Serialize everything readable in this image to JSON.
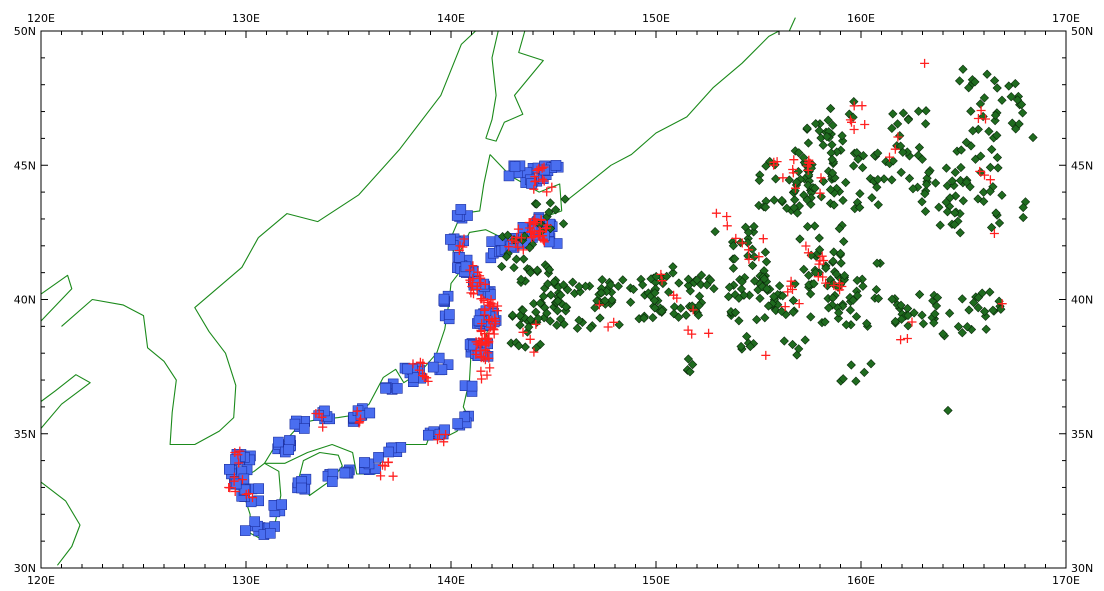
{
  "map": {
    "projection": "equirectangular",
    "extent": {
      "lon_min": 120,
      "lon_max": 170,
      "lat_min": 30,
      "lat_max": 50
    },
    "lon_ticks": [
      {
        "value": 120,
        "label": "120E"
      },
      {
        "value": 130,
        "label": "130E"
      },
      {
        "value": 140,
        "label": "140E"
      },
      {
        "value": 150,
        "label": "150E"
      },
      {
        "value": 160,
        "label": "160E"
      },
      {
        "value": 170,
        "label": "170E"
      }
    ],
    "lat_ticks": [
      {
        "value": 30,
        "label": "30N"
      },
      {
        "value": 35,
        "label": "35N"
      },
      {
        "value": 40,
        "label": "40N"
      },
      {
        "value": 45,
        "label": "45N"
      },
      {
        "value": 50,
        "label": "50N"
      }
    ],
    "colors": {
      "coastline": "#1b8a1b",
      "coastal_square": "#4a6ef0",
      "coastal_square_border": "#1c2fa0",
      "ocean_diamond": "#1f6b1f",
      "ocean_diamond_border": "#0a2a0a",
      "red_plus": "#ff2020"
    },
    "marker_styles": {
      "coastal": "blue-square",
      "ocean": "green-diamond",
      "overlay": "red-plus"
    }
  }
}
